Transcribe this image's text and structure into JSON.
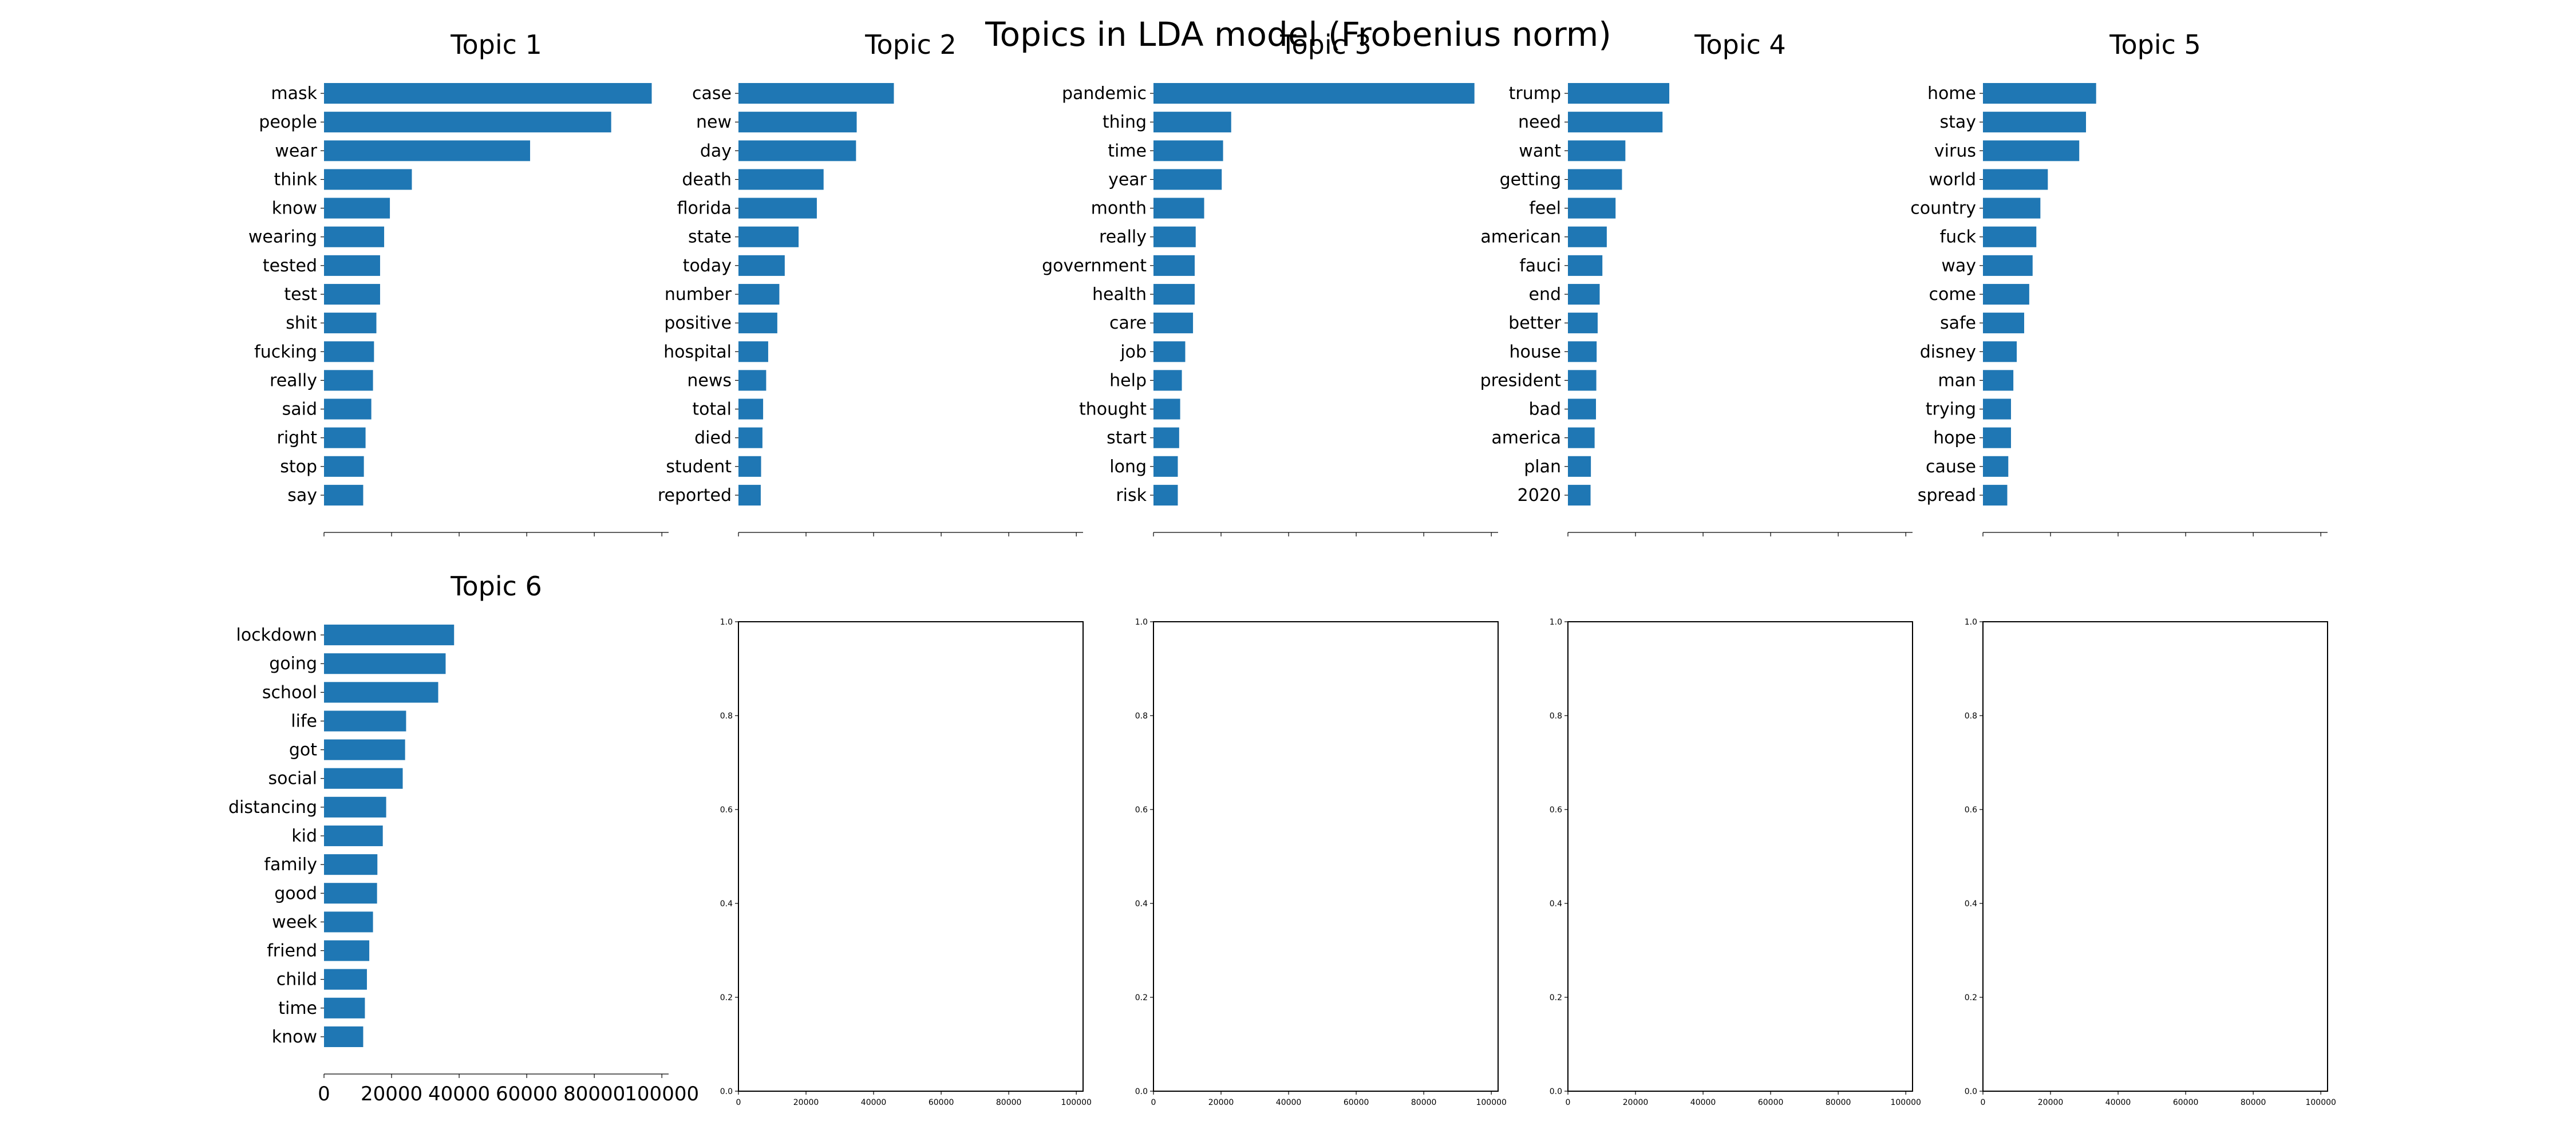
{
  "figure_title": "Topics in LDA model (Frobenius norm)",
  "bar_color": "#1f77b4",
  "chart_data": [
    {
      "type": "bar",
      "orientation": "horizontal",
      "title": "Topic 1",
      "categories": [
        "mask",
        "people",
        "wear",
        "think",
        "know",
        "wearing",
        "tested",
        "test",
        "shit",
        "fucking",
        "really",
        "said",
        "right",
        "stop",
        "say"
      ],
      "values": [
        97000,
        85000,
        61000,
        26000,
        19500,
        17800,
        16600,
        16600,
        15500,
        14800,
        14500,
        14000,
        12300,
        11800,
        11600
      ],
      "xlim": [
        0,
        102000
      ],
      "xticks": [
        0,
        20000,
        40000,
        60000,
        80000,
        100000
      ],
      "xtick_labels_visible": false
    },
    {
      "type": "bar",
      "orientation": "horizontal",
      "title": "Topic 2",
      "categories": [
        "case",
        "new",
        "day",
        "death",
        "florida",
        "state",
        "today",
        "number",
        "positive",
        "hospital",
        "news",
        "total",
        "died",
        "student",
        "reported"
      ],
      "values": [
        46000,
        35000,
        34800,
        25200,
        23200,
        17800,
        13700,
        12100,
        11500,
        8800,
        8200,
        7300,
        7100,
        6700,
        6600
      ],
      "xlim": [
        0,
        102000
      ],
      "xticks": [
        0,
        20000,
        40000,
        60000,
        80000,
        100000
      ],
      "xtick_labels_visible": false
    },
    {
      "type": "bar",
      "orientation": "horizontal",
      "title": "Topic 3",
      "categories": [
        "pandemic",
        "thing",
        "time",
        "year",
        "month",
        "really",
        "government",
        "health",
        "care",
        "job",
        "help",
        "thought",
        "start",
        "long",
        "risk"
      ],
      "values": [
        95000,
        23000,
        20600,
        20200,
        15000,
        12500,
        12200,
        12200,
        11700,
        9400,
        8400,
        7900,
        7600,
        7200,
        7200
      ],
      "xlim": [
        0,
        102000
      ],
      "xticks": [
        0,
        20000,
        40000,
        60000,
        80000,
        100000
      ],
      "xtick_labels_visible": false
    },
    {
      "type": "bar",
      "orientation": "horizontal",
      "title": "Topic 4",
      "categories": [
        "trump",
        "need",
        "want",
        "getting",
        "feel",
        "american",
        "fauci",
        "end",
        "better",
        "house",
        "president",
        "bad",
        "america",
        "plan",
        "2020"
      ],
      "values": [
        30000,
        28000,
        17000,
        16000,
        14100,
        11500,
        10200,
        9400,
        8800,
        8500,
        8400,
        8300,
        7900,
        6800,
        6700
      ],
      "xlim": [
        0,
        102000
      ],
      "xticks": [
        0,
        20000,
        40000,
        60000,
        80000,
        100000
      ],
      "xtick_labels_visible": false
    },
    {
      "type": "bar",
      "orientation": "horizontal",
      "title": "Topic 5",
      "categories": [
        "home",
        "stay",
        "virus",
        "world",
        "country",
        "fuck",
        "way",
        "come",
        "safe",
        "disney",
        "man",
        "trying",
        "hope",
        "cause",
        "spread"
      ],
      "values": [
        33500,
        30500,
        28500,
        19200,
        17000,
        15800,
        14700,
        13700,
        12200,
        10000,
        9000,
        8300,
        8300,
        7500,
        7200
      ],
      "xlim": [
        0,
        102000
      ],
      "xticks": [
        0,
        20000,
        40000,
        60000,
        80000,
        100000
      ],
      "xtick_labels_visible": false
    },
    {
      "type": "bar",
      "orientation": "horizontal",
      "title": "Topic 6",
      "categories": [
        "lockdown",
        "going",
        "school",
        "life",
        "got",
        "social",
        "distancing",
        "kid",
        "family",
        "good",
        "week",
        "friend",
        "child",
        "time",
        "know"
      ],
      "values": [
        38500,
        36000,
        33800,
        24300,
        24000,
        23300,
        18400,
        17400,
        15800,
        15700,
        14500,
        13400,
        12700,
        12100,
        11600
      ],
      "xlim": [
        0,
        102000
      ],
      "xticks": [
        0,
        20000,
        40000,
        60000,
        80000,
        100000
      ],
      "xtick_labels": [
        "0",
        "20000",
        "40000",
        "60000",
        "80000",
        "100000"
      ],
      "xtick_labels_visible": true
    },
    {
      "type": "empty",
      "xlim": [
        0,
        102000
      ],
      "ylim": [
        0,
        1
      ],
      "xtick_labels": [
        "0",
        "20000",
        "40000",
        "60000",
        "80000",
        "100000"
      ],
      "ytick_labels": [
        "0.0",
        "0.2",
        "0.4",
        "0.6",
        "0.8",
        "1.0"
      ]
    },
    {
      "type": "empty",
      "xlim": [
        0,
        102000
      ],
      "ylim": [
        0,
        1
      ],
      "xtick_labels": [
        "0",
        "20000",
        "40000",
        "60000",
        "80000",
        "100000"
      ],
      "ytick_labels": [
        "0.0",
        "0.2",
        "0.4",
        "0.6",
        "0.8",
        "1.0"
      ]
    },
    {
      "type": "empty",
      "xlim": [
        0,
        102000
      ],
      "ylim": [
        0,
        1
      ],
      "xtick_labels": [
        "0",
        "20000",
        "40000",
        "60000",
        "80000",
        "100000"
      ],
      "ytick_labels": [
        "0.0",
        "0.2",
        "0.4",
        "0.6",
        "0.8",
        "1.0"
      ]
    },
    {
      "type": "empty",
      "xlim": [
        0,
        102000
      ],
      "ylim": [
        0,
        1
      ],
      "xtick_labels": [
        "0",
        "20000",
        "40000",
        "60000",
        "80000",
        "100000"
      ],
      "ytick_labels": [
        "0.0",
        "0.2",
        "0.4",
        "0.6",
        "0.8",
        "1.0"
      ]
    }
  ]
}
